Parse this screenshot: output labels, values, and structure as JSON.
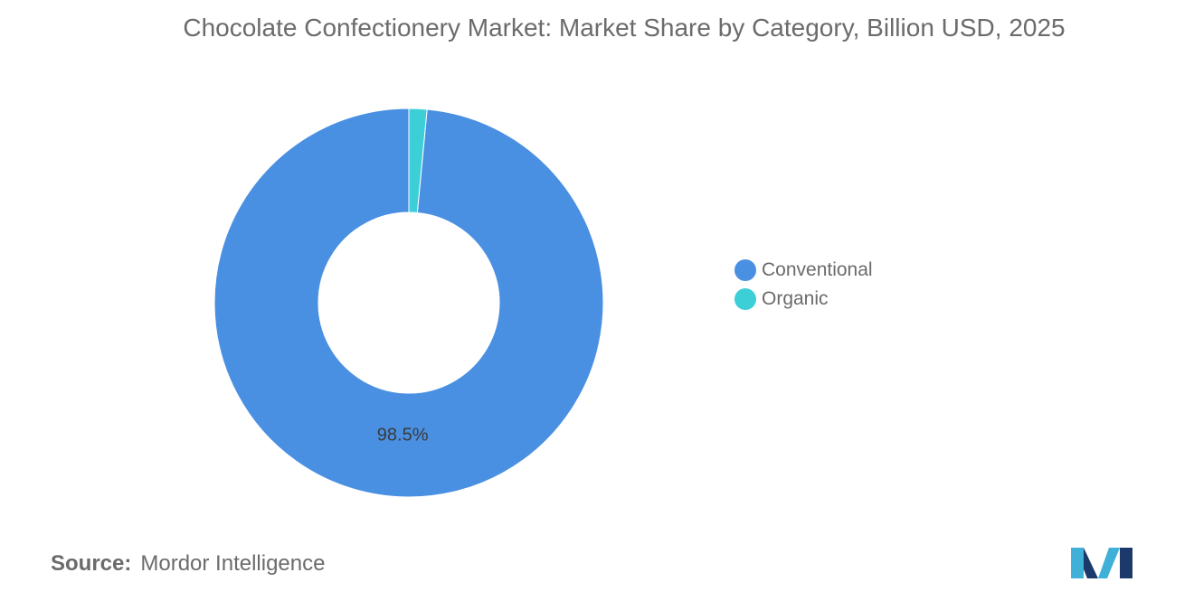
{
  "chart_data": {
    "type": "pie",
    "variant": "donut",
    "title": "Chocolate Confectionery Market: Market Share by Category, Billion USD, 2025",
    "categories": [
      "Conventional",
      "Organic"
    ],
    "values": [
      98.5,
      1.5
    ],
    "data_labels": [
      "98.5%",
      ""
    ],
    "colors": [
      "#4a90e2",
      "#3ccfd8"
    ],
    "legend_position": "right"
  },
  "source": {
    "label": "Source:",
    "value": "Mordor Intelligence"
  },
  "logo": {
    "icon": "mordor-intelligence-logo-icon",
    "colors": [
      "#1b3a6b",
      "#3fb0d8"
    ]
  }
}
